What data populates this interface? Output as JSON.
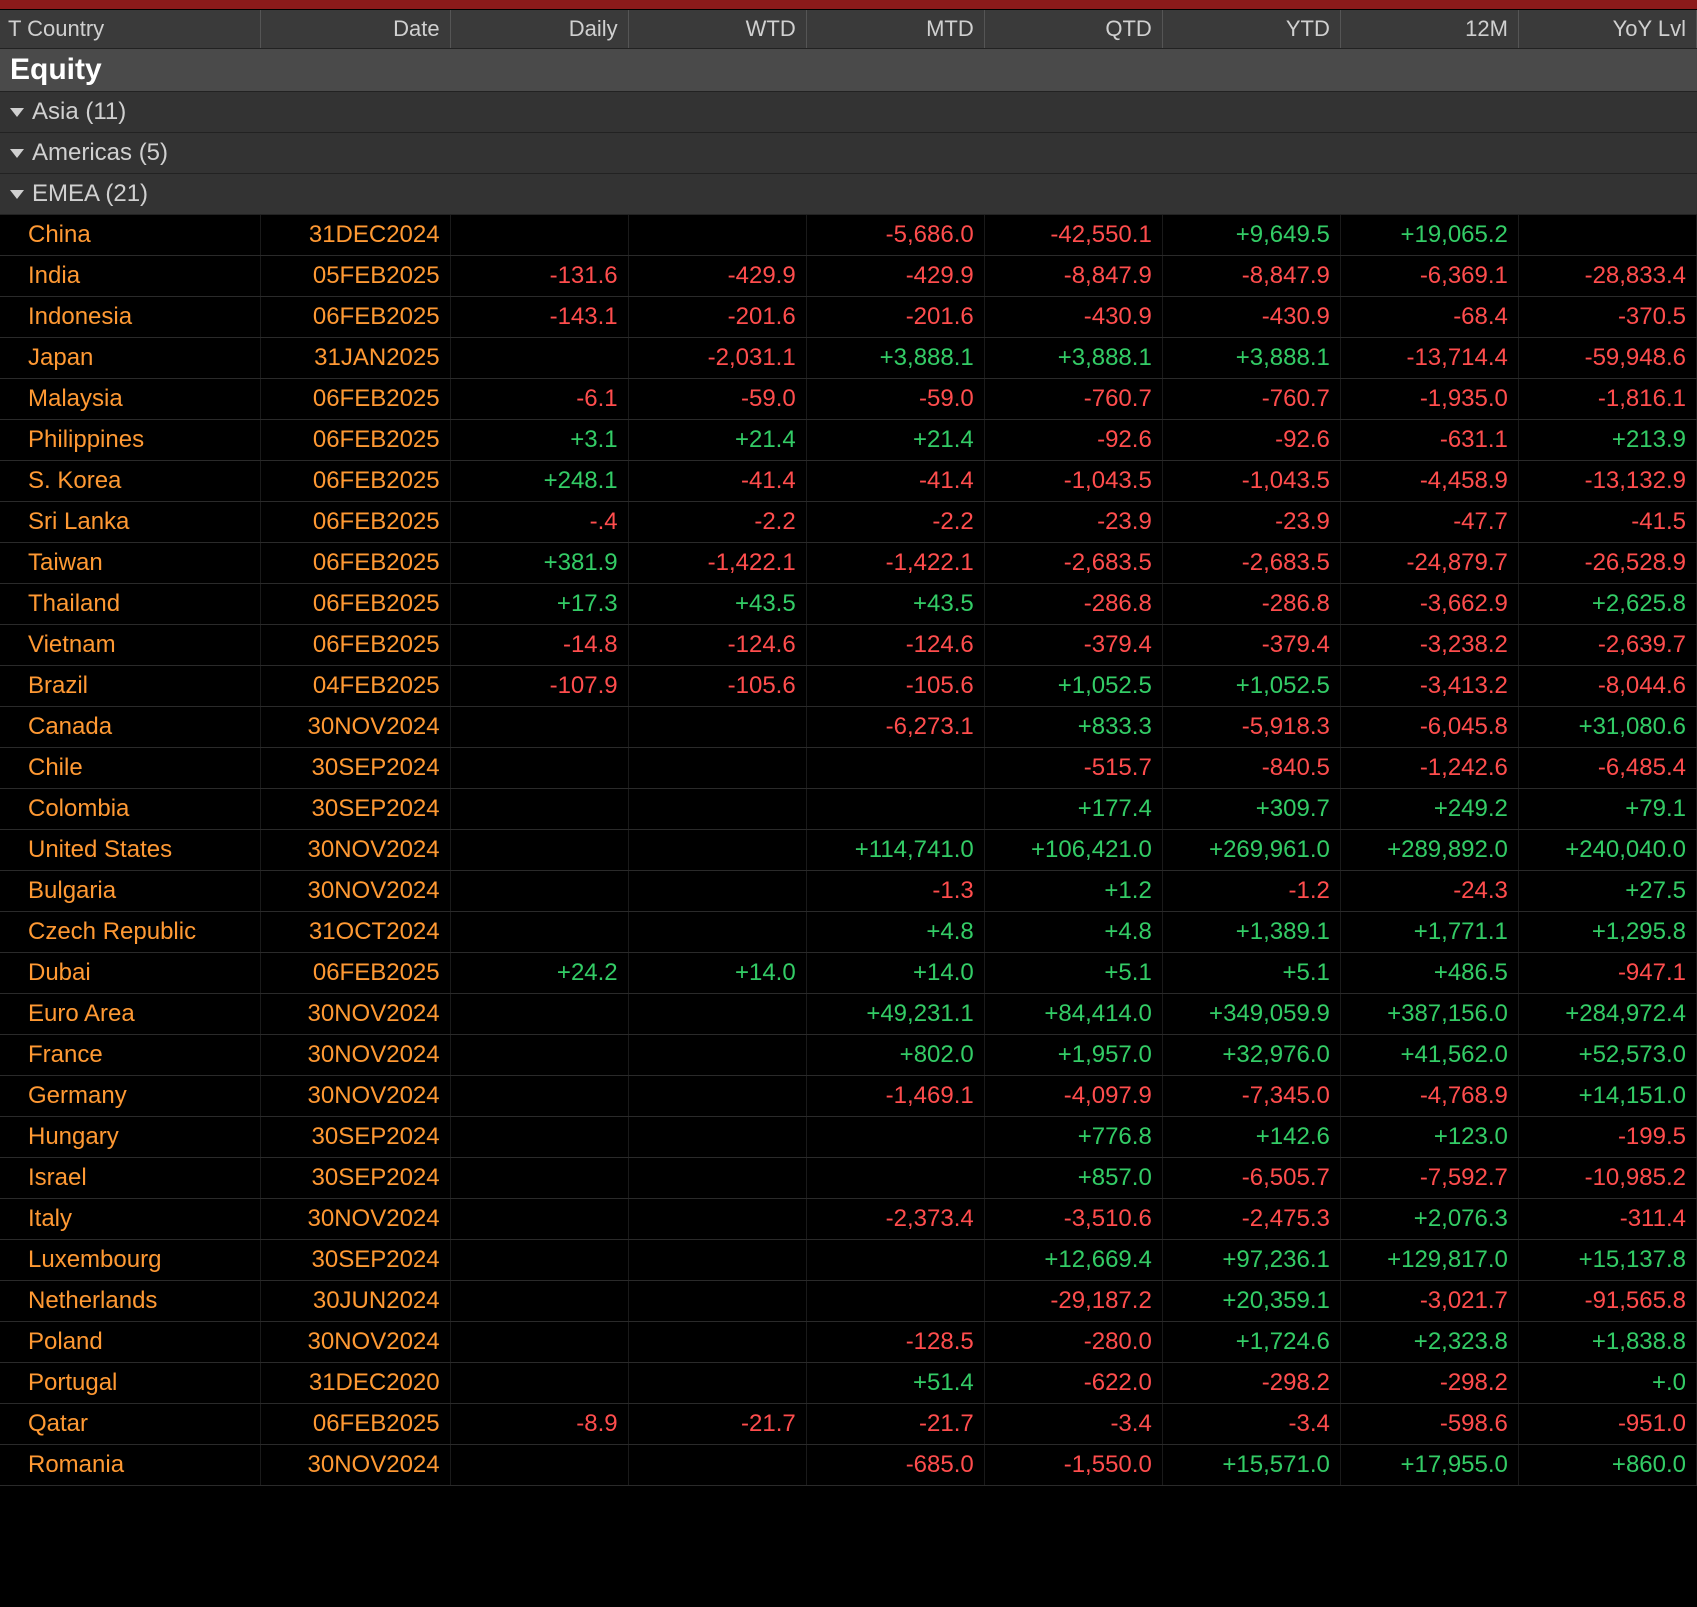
{
  "colors": {
    "background": "#000000",
    "header_bg": "#3a3a3a",
    "category_bg": "#4a4a4a",
    "group_bg": "#333333",
    "country_text": "#ff9933",
    "date_text": "#ff9933",
    "positive": "#33cc66",
    "negative": "#ff4d4d",
    "header_text": "#d0d0d0",
    "top_bar": "#8b1a1a"
  },
  "columns": [
    {
      "key": "country",
      "label": "T Country",
      "align": "left"
    },
    {
      "key": "date",
      "label": "Date",
      "align": "right"
    },
    {
      "key": "daily",
      "label": "Daily",
      "align": "right"
    },
    {
      "key": "wtd",
      "label": "WTD",
      "align": "right"
    },
    {
      "key": "mtd",
      "label": "MTD",
      "align": "right"
    },
    {
      "key": "qtd",
      "label": "QTD",
      "align": "right"
    },
    {
      "key": "ytd",
      "label": "YTD",
      "align": "right"
    },
    {
      "key": "m12",
      "label": "12M",
      "align": "right"
    },
    {
      "key": "yoy",
      "label": "YoY Lvl",
      "align": "right"
    }
  ],
  "category": "Equity",
  "groups": [
    {
      "name": "Asia",
      "count": 11,
      "rows": [
        {
          "country": "China",
          "date": "31DEC2024",
          "daily": null,
          "wtd": null,
          "mtd": -5686.0,
          "qtd": -42550.1,
          "ytd": 9649.5,
          "m12": 19065.2,
          "yoy": null
        },
        {
          "country": "India",
          "date": "05FEB2025",
          "daily": -131.6,
          "wtd": -429.9,
          "mtd": -429.9,
          "qtd": -8847.9,
          "ytd": -8847.9,
          "m12": -6369.1,
          "yoy": -28833.4
        },
        {
          "country": "Indonesia",
          "date": "06FEB2025",
          "daily": -143.1,
          "wtd": -201.6,
          "mtd": -201.6,
          "qtd": -430.9,
          "ytd": -430.9,
          "m12": -68.4,
          "yoy": -370.5
        },
        {
          "country": "Japan",
          "date": "31JAN2025",
          "daily": null,
          "wtd": -2031.1,
          "mtd": 3888.1,
          "qtd": 3888.1,
          "ytd": 3888.1,
          "m12": -13714.4,
          "yoy": -59948.6
        },
        {
          "country": "Malaysia",
          "date": "06FEB2025",
          "daily": -6.1,
          "wtd": -59.0,
          "mtd": -59.0,
          "qtd": -760.7,
          "ytd": -760.7,
          "m12": -1935.0,
          "yoy": -1816.1
        },
        {
          "country": "Philippines",
          "date": "06FEB2025",
          "daily": 3.1,
          "wtd": 21.4,
          "mtd": 21.4,
          "qtd": -92.6,
          "ytd": -92.6,
          "m12": -631.1,
          "yoy": 213.9
        },
        {
          "country": "S. Korea",
          "date": "06FEB2025",
          "daily": 248.1,
          "wtd": -41.4,
          "mtd": -41.4,
          "qtd": -1043.5,
          "ytd": -1043.5,
          "m12": -4458.9,
          "yoy": -13132.9
        },
        {
          "country": "Sri Lanka",
          "date": "06FEB2025",
          "daily": -0.4,
          "wtd": -2.2,
          "mtd": -2.2,
          "qtd": -23.9,
          "ytd": -23.9,
          "m12": -47.7,
          "yoy": -41.5
        },
        {
          "country": "Taiwan",
          "date": "06FEB2025",
          "daily": 381.9,
          "wtd": -1422.1,
          "mtd": -1422.1,
          "qtd": -2683.5,
          "ytd": -2683.5,
          "m12": -24879.7,
          "yoy": -26528.9
        },
        {
          "country": "Thailand",
          "date": "06FEB2025",
          "daily": 17.3,
          "wtd": 43.5,
          "mtd": 43.5,
          "qtd": -286.8,
          "ytd": -286.8,
          "m12": -3662.9,
          "yoy": 2625.8
        },
        {
          "country": "Vietnam",
          "date": "06FEB2025",
          "daily": -14.8,
          "wtd": -124.6,
          "mtd": -124.6,
          "qtd": -379.4,
          "ytd": -379.4,
          "m12": -3238.2,
          "yoy": -2639.7
        }
      ]
    },
    {
      "name": "Americas",
      "count": 5,
      "rows": [
        {
          "country": "Brazil",
          "date": "04FEB2025",
          "daily": -107.9,
          "wtd": -105.6,
          "mtd": -105.6,
          "qtd": 1052.5,
          "ytd": 1052.5,
          "m12": -3413.2,
          "yoy": -8044.6
        },
        {
          "country": "Canada",
          "date": "30NOV2024",
          "daily": null,
          "wtd": null,
          "mtd": -6273.1,
          "qtd": 833.3,
          "ytd": -5918.3,
          "m12": -6045.8,
          "yoy": 31080.6
        },
        {
          "country": "Chile",
          "date": "30SEP2024",
          "daily": null,
          "wtd": null,
          "mtd": null,
          "qtd": -515.7,
          "ytd": -840.5,
          "m12": -1242.6,
          "yoy": -6485.4
        },
        {
          "country": "Colombia",
          "date": "30SEP2024",
          "daily": null,
          "wtd": null,
          "mtd": null,
          "qtd": 177.4,
          "ytd": 309.7,
          "m12": 249.2,
          "yoy": 79.1
        },
        {
          "country": "United States",
          "date": "30NOV2024",
          "daily": null,
          "wtd": null,
          "mtd": 114741.0,
          "qtd": 106421.0,
          "qtd_trunc": true,
          "ytd": 269961.0,
          "ytd_trunc": true,
          "m12": 289892.0,
          "yoy": 240040.0
        }
      ]
    },
    {
      "name": "EMEA",
      "count": 21,
      "rows": [
        {
          "country": "Bulgaria",
          "date": "30NOV2024",
          "daily": null,
          "wtd": null,
          "mtd": -1.3,
          "qtd": 1.2,
          "ytd": -1.2,
          "m12": -24.3,
          "yoy": 27.5
        },
        {
          "country": "Czech Republic",
          "date": "31OCT2024",
          "daily": null,
          "wtd": null,
          "mtd": 4.8,
          "qtd": 4.8,
          "ytd": 1389.1,
          "m12": 1771.1,
          "yoy": 1295.8
        },
        {
          "country": "Dubai",
          "date": "06FEB2025",
          "daily": 24.2,
          "wtd": 14.0,
          "mtd": 14.0,
          "qtd": 5.1,
          "ytd": 5.1,
          "m12": 486.5,
          "yoy": -947.1
        },
        {
          "country": "Euro Area",
          "date": "30NOV2024",
          "daily": null,
          "wtd": null,
          "mtd": 49231.1,
          "qtd": 84414.0,
          "ytd": 349059.9,
          "m12": 387156.0,
          "yoy": 284972.4
        },
        {
          "country": "France",
          "date": "30NOV2024",
          "daily": null,
          "wtd": null,
          "mtd": 802.0,
          "qtd": 1957.0,
          "ytd": 32976.0,
          "m12": 41562.0,
          "yoy": 52573.0
        },
        {
          "country": "Germany",
          "date": "30NOV2024",
          "daily": null,
          "wtd": null,
          "mtd": -1469.1,
          "qtd": -4097.9,
          "ytd": -7345.0,
          "m12": -4768.9,
          "yoy": 14151.0
        },
        {
          "country": "Hungary",
          "date": "30SEP2024",
          "daily": null,
          "wtd": null,
          "mtd": null,
          "qtd": 776.8,
          "ytd": 142.6,
          "m12": 123.0,
          "yoy": -199.5
        },
        {
          "country": "Israel",
          "date": "30SEP2024",
          "daily": null,
          "wtd": null,
          "mtd": null,
          "qtd": 857.0,
          "ytd": -6505.7,
          "m12": -7592.7,
          "yoy": -10985.2
        },
        {
          "country": "Italy",
          "date": "30NOV2024",
          "daily": null,
          "wtd": null,
          "mtd": -2373.4,
          "qtd": -3510.6,
          "ytd": -2475.3,
          "m12": 2076.3,
          "yoy": -311.4
        },
        {
          "country": "Luxembourg",
          "date": "30SEP2024",
          "daily": null,
          "wtd": null,
          "mtd": null,
          "qtd": 12669.4,
          "ytd": 97236.1,
          "m12": 129817.0,
          "yoy": 15137.8
        },
        {
          "country": "Netherlands",
          "date": "30JUN2024",
          "daily": null,
          "wtd": null,
          "mtd": null,
          "qtd": -29187.2,
          "ytd": 20359.1,
          "m12": -3021.7,
          "yoy": -91565.8
        },
        {
          "country": "Poland",
          "date": "30NOV2024",
          "daily": null,
          "wtd": null,
          "mtd": -128.5,
          "qtd": -280.0,
          "ytd": 1724.6,
          "m12": 2323.8,
          "yoy": 1838.8
        },
        {
          "country": "Portugal",
          "date": "31DEC2020",
          "daily": null,
          "wtd": null,
          "mtd": 51.4,
          "qtd": -622.0,
          "ytd": -298.2,
          "m12": -298.2,
          "yoy": 0.0,
          "yoy_raw": "+.0"
        },
        {
          "country": "Qatar",
          "date": "06FEB2025",
          "daily": -8.9,
          "wtd": -21.7,
          "mtd": -21.7,
          "qtd": -3.4,
          "ytd": -3.4,
          "m12": -598.6,
          "yoy": -951.0
        },
        {
          "country": "Romania",
          "date": "30NOV2024",
          "daily": null,
          "wtd": null,
          "mtd": -685.0,
          "qtd": -1550.0,
          "ytd": 15571.0,
          "m12": 17955.0,
          "yoy": 860.0
        }
      ]
    }
  ]
}
